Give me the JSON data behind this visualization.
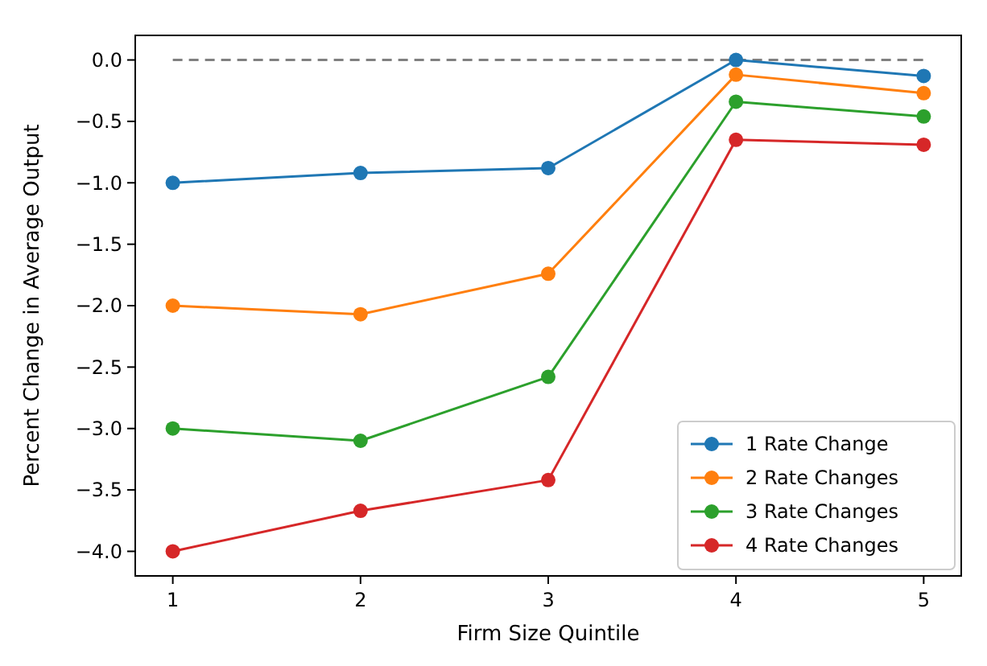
{
  "chart_data": {
    "type": "line",
    "xlabel": "Firm Size Quintile",
    "ylabel": "Percent Change in Average Output",
    "x": [
      1,
      2,
      3,
      4,
      5
    ],
    "series": [
      {
        "name": "1 Rate Change",
        "color": "#1f77b4",
        "values": [
          -1.0,
          -0.92,
          -0.88,
          0.0,
          -0.13
        ]
      },
      {
        "name": "2 Rate Changes",
        "color": "#ff7f0e",
        "values": [
          -2.0,
          -2.07,
          -1.74,
          -0.12,
          -0.27
        ]
      },
      {
        "name": "3 Rate Changes",
        "color": "#2ca02c",
        "values": [
          -3.0,
          -3.1,
          -2.58,
          -0.34,
          -0.46
        ]
      },
      {
        "name": "4 Rate Changes",
        "color": "#d62728",
        "values": [
          -4.0,
          -3.67,
          -3.42,
          -0.65,
          -0.69
        ]
      }
    ],
    "xlim": [
      0.8,
      5.2
    ],
    "xticks": [
      1,
      2,
      3,
      4,
      5
    ],
    "ylim": [
      -4.2,
      0.2
    ],
    "yticks": [
      {
        "value": -4,
        "label": "−4.0"
      },
      {
        "value": -3.5,
        "label": "−3.5"
      },
      {
        "value": -3,
        "label": "−3.0"
      },
      {
        "value": -2.5,
        "label": "−2.5"
      },
      {
        "value": -2,
        "label": "−2.0"
      },
      {
        "value": -1.5,
        "label": "−1.5"
      },
      {
        "value": -1,
        "label": "−1.0"
      },
      {
        "value": -0.5,
        "label": "−0.5"
      },
      {
        "value": 0,
        "label": "0.0"
      }
    ],
    "ref_lines": [
      {
        "axis": "y",
        "value": 0,
        "color": "#808080",
        "line_style": "dashed"
      }
    ],
    "legend": "bottom right",
    "marker": "circle",
    "line_style": "solid",
    "grid": false
  }
}
